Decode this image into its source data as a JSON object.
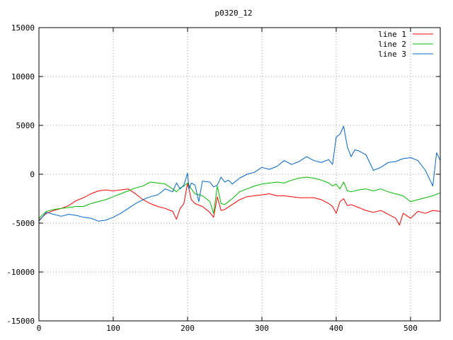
{
  "chart_data": {
    "type": "line",
    "title": "p0320_12",
    "xlabel": "",
    "ylabel": "",
    "xlim": [
      0,
      540
    ],
    "ylim": [
      -15000,
      15000
    ],
    "xticks": [
      0,
      100,
      200,
      300,
      400,
      500
    ],
    "yticks": [
      -15000,
      -10000,
      -5000,
      0,
      5000,
      10000,
      15000
    ],
    "grid": true,
    "legend_position": "top-right",
    "series": [
      {
        "name": "line 1",
        "color": "#ff0000",
        "x": [
          0,
          10,
          20,
          30,
          40,
          50,
          60,
          70,
          80,
          90,
          100,
          110,
          120,
          130,
          140,
          150,
          160,
          170,
          180,
          185,
          190,
          195,
          200,
          205,
          210,
          220,
          230,
          235,
          240,
          245,
          250,
          260,
          270,
          280,
          290,
          300,
          310,
          320,
          330,
          340,
          350,
          360,
          370,
          380,
          390,
          395,
          400,
          405,
          410,
          415,
          420,
          430,
          440,
          450,
          460,
          470,
          480,
          485,
          490,
          500,
          510,
          520,
          530,
          540
        ],
        "y": [
          -4700,
          -4000,
          -3700,
          -3500,
          -3200,
          -2700,
          -2400,
          -2000,
          -1700,
          -1600,
          -1700,
          -1600,
          -1500,
          -2000,
          -2600,
          -3000,
          -3300,
          -3500,
          -3800,
          -4600,
          -3500,
          -3000,
          -900,
          -2600,
          -3000,
          -3300,
          -3900,
          -4400,
          -2300,
          -3700,
          -3600,
          -3100,
          -2600,
          -2300,
          -2200,
          -2100,
          -2000,
          -2200,
          -2200,
          -2300,
          -2400,
          -2400,
          -2400,
          -2600,
          -3000,
          -3300,
          -4000,
          -2800,
          -2500,
          -3200,
          -3100,
          -3400,
          -3700,
          -3900,
          -3700,
          -4100,
          -4500,
          -5200,
          -4000,
          -4500,
          -3800,
          -4000,
          -3700,
          -3800
        ]
      },
      {
        "name": "line 2",
        "color": "#00bb00",
        "x": [
          0,
          10,
          20,
          30,
          40,
          50,
          60,
          70,
          80,
          90,
          100,
          110,
          120,
          130,
          140,
          150,
          160,
          170,
          180,
          185,
          190,
          195,
          200,
          205,
          210,
          220,
          230,
          235,
          240,
          245,
          250,
          260,
          270,
          280,
          290,
          300,
          310,
          320,
          330,
          340,
          350,
          360,
          370,
          380,
          390,
          395,
          400,
          405,
          410,
          415,
          420,
          430,
          440,
          450,
          460,
          470,
          480,
          490,
          500,
          510,
          520,
          530,
          540
        ],
        "y": [
          -4500,
          -3800,
          -3600,
          -3500,
          -3400,
          -3300,
          -3300,
          -3000,
          -2800,
          -2600,
          -2300,
          -2000,
          -1700,
          -1400,
          -1200,
          -800,
          -900,
          -1000,
          -1500,
          -1800,
          -1400,
          -1200,
          -900,
          -1500,
          -2000,
          -2200,
          -2800,
          -4000,
          -1200,
          -3000,
          -3100,
          -2500,
          -1800,
          -1500,
          -1200,
          -1000,
          -900,
          -800,
          -900,
          -600,
          -400,
          -300,
          -400,
          -600,
          -900,
          -1200,
          -1000,
          -1500,
          -800,
          -1700,
          -1800,
          -1600,
          -1500,
          -1700,
          -1500,
          -1800,
          -2000,
          -2200,
          -2800,
          -2600,
          -2400,
          -2200,
          -1900
        ]
      },
      {
        "name": "line 3",
        "color": "#0066cc",
        "x": [
          0,
          10,
          20,
          30,
          40,
          50,
          60,
          70,
          80,
          90,
          100,
          110,
          120,
          130,
          140,
          150,
          160,
          170,
          180,
          185,
          190,
          195,
          200,
          202,
          205,
          210,
          215,
          220,
          230,
          235,
          240,
          245,
          250,
          255,
          260,
          270,
          280,
          290,
          300,
          310,
          320,
          330,
          340,
          350,
          360,
          370,
          380,
          390,
          395,
          400,
          405,
          410,
          415,
          420,
          425,
          430,
          440,
          450,
          460,
          470,
          480,
          490,
          500,
          510,
          520,
          530,
          535,
          540
        ],
        "y": [
          -4800,
          -3900,
          -4100,
          -4300,
          -4100,
          -4200,
          -4400,
          -4500,
          -4800,
          -4700,
          -4400,
          -4000,
          -3500,
          -3000,
          -2600,
          -2300,
          -2100,
          -1500,
          -1800,
          -900,
          -1500,
          -1100,
          100,
          -1500,
          -900,
          -1100,
          -2800,
          -700,
          -800,
          -1300,
          -1100,
          -300,
          -800,
          -600,
          -1000,
          -400,
          0,
          200,
          700,
          500,
          800,
          1400,
          1000,
          1300,
          1800,
          1400,
          1200,
          1500,
          1000,
          3800,
          4100,
          4900,
          2800,
          1800,
          2500,
          2400,
          2000,
          400,
          700,
          1200,
          1300,
          1600,
          1700,
          1400,
          400,
          -1200,
          2200,
          1400
        ]
      }
    ]
  }
}
